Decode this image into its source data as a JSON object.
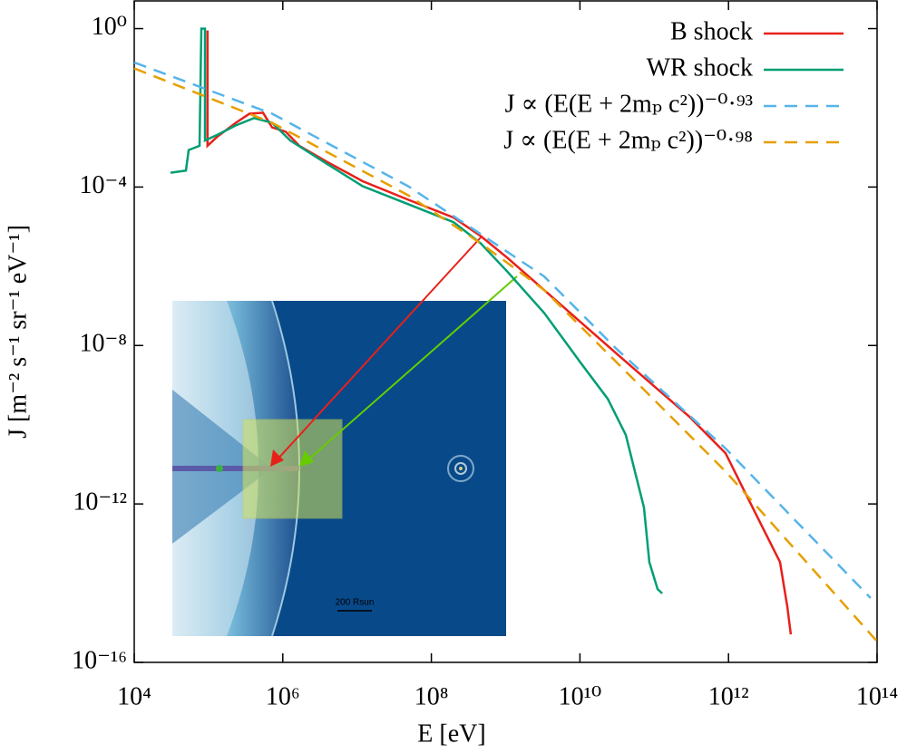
{
  "chart_data": {
    "type": "line",
    "xlabel": "E [eV]",
    "ylabel": "J [m⁻² s⁻¹ sr⁻¹ eV⁻¹]",
    "log_x": true,
    "log_y": true,
    "xlim": [
      10000,
      100000000000000
    ],
    "ylim": [
      1e-16,
      5
    ],
    "xticks": [
      {
        "value": 10000,
        "label": "10⁴"
      },
      {
        "value": 1000000,
        "label": "10⁶"
      },
      {
        "value": 100000000,
        "label": "10⁸"
      },
      {
        "value": 10000000000,
        "label": "10¹⁰"
      },
      {
        "value": 1000000000000,
        "label": "10¹²"
      },
      {
        "value": 100000000000000,
        "label": "10¹⁴"
      }
    ],
    "yticks": [
      {
        "value": 1,
        "label": "10⁰"
      },
      {
        "value": 0.0001,
        "label": "10⁻⁴"
      },
      {
        "value": 1e-08,
        "label": "10⁻⁸"
      },
      {
        "value": 1e-12,
        "label": "10⁻¹²"
      },
      {
        "value": 1e-16,
        "label": "10⁻¹⁶"
      }
    ],
    "legend": "upper right",
    "inset_scale_label": "200 Rsun",
    "series": [
      {
        "name": "B shock",
        "color": "#e8201a",
        "dashed": false,
        "x": [
          97000,
          97000,
          133000,
          233000,
          356000,
          542000,
          718000,
          1090000,
          1670000,
          3880000,
          11900000,
          48700000,
          199000000,
          461000000,
          1070000000,
          3310000000,
          10200000000,
          31300000000,
          96400000000,
          297000000000,
          914000000000,
          1600000000000,
          2810000000000,
          4940000000000,
          6200000000000,
          6900000000000
        ],
        "values": [
          0.9,
          0.0011,
          0.0019,
          0.0042,
          0.0071,
          0.0075,
          0.0032,
          0.0025,
          0.0011,
          0.00044,
          0.00014,
          4.8e-05,
          1.7e-05,
          5.8e-06,
          1.6e-06,
          2.5e-07,
          3.9e-08,
          6.2e-09,
          9.9e-10,
          1.6e-10,
          1.9e-11,
          2.3e-12,
          2.8e-13,
          3.4e-14,
          2.5e-15,
          5.1e-16
        ]
      },
      {
        "name": "WR shock",
        "color": "#009e73",
        "dashed": false,
        "x": [
          30800,
          49700,
          54000,
          75700,
          80000,
          89600,
          89600,
          133000,
          233000,
          410000,
          718000,
          1260000,
          3880000,
          11900000,
          48700000,
          199000000,
          461000000,
          1070000000,
          3310000000,
          10200000000,
          23700000000,
          41500000000,
          55000000000,
          72800000000,
          86000000000,
          111000000000,
          128000000000
        ],
        "values": [
          0.00023,
          0.00026,
          0.00086,
          0.0011,
          1.0,
          1.0,
          0.0015,
          0.0021,
          0.0036,
          0.0055,
          0.0042,
          0.0015,
          0.00039,
          0.000105,
          3.7e-05,
          1.3e-05,
          3.8e-06,
          7.1e-07,
          6.6e-08,
          3.7e-09,
          4.5e-10,
          5.5e-11,
          6.6e-12,
          8.1e-13,
          3.4e-14,
          7.1e-15,
          5.5e-15
        ]
      },
      {
        "name": "J ∝ (E(E + 2mₚ c²))⁻⁰·⁹³",
        "color": "#56b4e9",
        "dashed": true,
        "x": [
          10000,
          718000,
          48700000,
          461000000,
          3310000000,
          31300000000,
          914000000000,
          82000000000000
        ],
        "values": [
          0.14,
          0.0071,
          0.000105,
          6.5e-06,
          5.5e-07,
          8.1e-09,
          2.5e-11,
          4.2e-15
        ]
      },
      {
        "name": "J ∝ (E(E + 2mₚ c²))⁻⁰·⁹⁸",
        "color": "#e69f00",
        "dashed": true,
        "x": [
          10000,
          718000,
          48700000,
          461000000,
          3310000000,
          55000000000,
          914000000000,
          100000000000000
        ],
        "values": [
          0.099,
          0.0042,
          6.2e-05,
          3.8e-06,
          2.5e-07,
          1.3e-09,
          6.6e-12,
          3.4e-16
        ]
      }
    ]
  }
}
